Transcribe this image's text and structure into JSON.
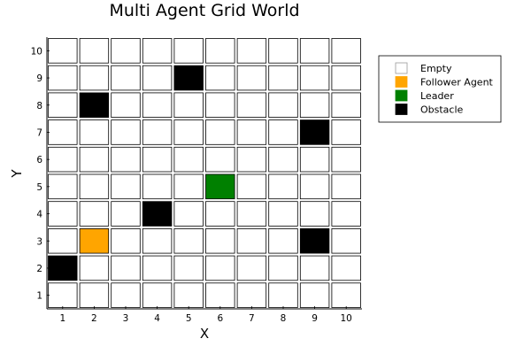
{
  "chart_data": {
    "type": "heatmap",
    "title": "Multi Agent Grid World",
    "xlabel": "X",
    "ylabel": "Y",
    "xlim": [
      0.5,
      10.5
    ],
    "ylim": [
      0.5,
      10.5
    ],
    "x_ticks": [
      "1",
      "2",
      "3",
      "4",
      "5",
      "6",
      "7",
      "8",
      "9",
      "10"
    ],
    "y_ticks": [
      "1",
      "2",
      "3",
      "4",
      "5",
      "6",
      "7",
      "8",
      "9",
      "10"
    ],
    "grid": false,
    "legend_position": "top-right",
    "categories": [
      {
        "key": "empty",
        "name": "Empty",
        "color": "#ffffff"
      },
      {
        "key": "follower",
        "name": "Follower Agent",
        "color": "#ffa500"
      },
      {
        "key": "leader",
        "name": "Leader",
        "color": "#008000"
      },
      {
        "key": "obstacle",
        "name": "Obstacle",
        "color": "#000000"
      }
    ],
    "default_category": "empty",
    "cells": [
      {
        "x": 1,
        "y": 2,
        "category": "obstacle"
      },
      {
        "x": 2,
        "y": 3,
        "category": "follower"
      },
      {
        "x": 2,
        "y": 8,
        "category": "obstacle"
      },
      {
        "x": 4,
        "y": 4,
        "category": "obstacle"
      },
      {
        "x": 5,
        "y": 9,
        "category": "obstacle"
      },
      {
        "x": 6,
        "y": 5,
        "category": "leader"
      },
      {
        "x": 9,
        "y": 3,
        "category": "obstacle"
      },
      {
        "x": 9,
        "y": 7,
        "category": "obstacle"
      }
    ]
  }
}
